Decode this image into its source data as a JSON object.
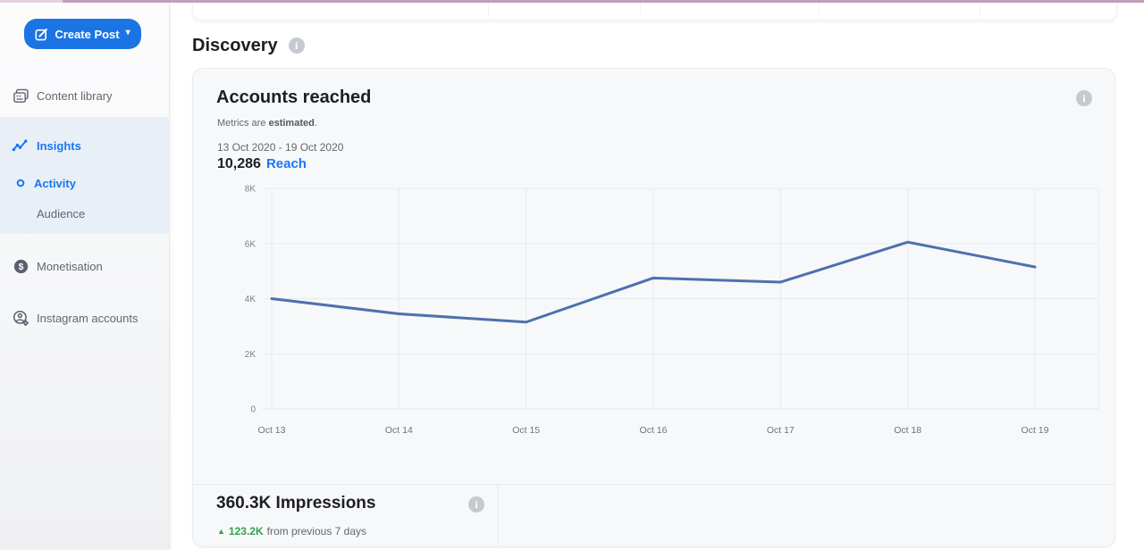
{
  "sidebar": {
    "create_post": {
      "label": "Create Post"
    },
    "items": [
      {
        "label": "Content library",
        "icon": "content-library-icon"
      },
      {
        "label": "Insights",
        "icon": "insights-icon",
        "active": true
      },
      {
        "label": "Activity",
        "icon": "activity-dot-icon",
        "active": true
      },
      {
        "label": "Audience"
      },
      {
        "label": "Monetisation",
        "icon": "monetisation-icon"
      },
      {
        "label": "Instagram accounts",
        "icon": "instagram-accounts-icon"
      }
    ]
  },
  "main": {
    "section_title": "Discovery",
    "card": {
      "title": "Accounts reached",
      "subtitle_prefix": "Metrics are ",
      "subtitle_bold": "estimated",
      "subtitle_suffix": ".",
      "date_range": "13 Oct 2020 - 19 Oct 2020",
      "reach_value": "10,286",
      "reach_label": "Reach",
      "impressions": {
        "value": "360.3K Impressions",
        "delta": "123.2K",
        "delta_suffix": "from previous 7 days"
      }
    }
  },
  "chart_data": {
    "type": "line",
    "title": "Accounts reached",
    "x": [
      "Oct 13",
      "Oct 14",
      "Oct 15",
      "Oct 16",
      "Oct 17",
      "Oct 18",
      "Oct 19"
    ],
    "series": [
      {
        "name": "Reach",
        "values": [
          4000,
          3450,
          3150,
          4750,
          4600,
          6050,
          5150
        ]
      }
    ],
    "xlabel": "",
    "ylabel": "",
    "ylim": [
      0,
      8000
    ],
    "yticks": [
      0,
      2000,
      4000,
      6000,
      8000
    ],
    "ytick_labels": [
      "0",
      "2K",
      "4K",
      "6K",
      "8K"
    ],
    "grid": true,
    "legend": "none",
    "grid_color": "#e8eaed",
    "line_color": "#4d70af"
  },
  "icons": {
    "info": "i",
    "caret_down": "▾",
    "up_triangle": "▲"
  },
  "colors": {
    "accent_blue": "#1b74e4",
    "link_blue": "#1877f2",
    "positive_green": "#31a24c",
    "chart_line": "#4d70af",
    "highlight_bg": "#e9eff7",
    "top_edge_line": "#bf9fba"
  }
}
